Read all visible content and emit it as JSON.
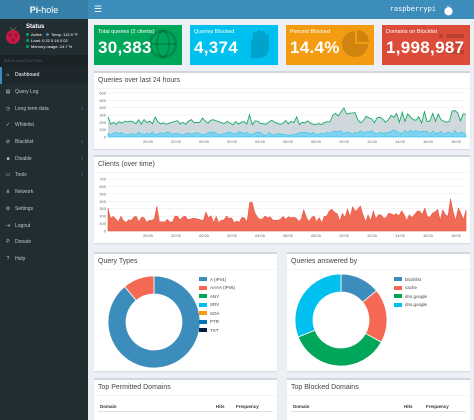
{
  "logo": {
    "part1": "Pi-",
    "part2": "hole"
  },
  "status": {
    "title": "Status",
    "active": "Active",
    "temp": "Temp: 112.9 °F",
    "load": "Load: 0.22  0.16  0.02",
    "memory": "Memory usage: 24.7 %"
  },
  "nav": {
    "header": "MAIN NAVIGATION",
    "items": [
      {
        "label": "Dashboard",
        "icon": "home-icon"
      },
      {
        "label": "Query Log",
        "icon": "file-icon"
      },
      {
        "label": "Long term data",
        "icon": "clock-icon"
      },
      {
        "label": "Whitelist",
        "icon": "check-icon"
      },
      {
        "label": "Blacklist",
        "icon": "ban-icon"
      },
      {
        "label": "Disable",
        "icon": "stop-icon"
      },
      {
        "label": "Tools",
        "icon": "folder-icon"
      },
      {
        "label": "Network",
        "icon": "network-icon"
      },
      {
        "label": "Settings",
        "icon": "gear-icon"
      },
      {
        "label": "Logout",
        "icon": "logout-icon"
      },
      {
        "label": "Donate",
        "icon": "paypal-icon"
      },
      {
        "label": "Help",
        "icon": "help-icon"
      }
    ]
  },
  "header": {
    "hostname": "raspberrypi"
  },
  "stats": [
    {
      "label": "Total queries (2 clients)",
      "value": "30,383",
      "color": "#00a65a",
      "icon": "globe-icon"
    },
    {
      "label": "Queries Blocked",
      "value": "4,374",
      "color": "#00c0ef",
      "icon": "hand-icon"
    },
    {
      "label": "Percent Blocked",
      "value": "14.4%",
      "color": "#f39c12",
      "icon": "pie-icon"
    },
    {
      "label": "Domains on Blocklist",
      "value": "1,998,987",
      "color": "#dd4b39",
      "icon": "list-icon"
    }
  ],
  "queries_chart": {
    "title": "Queries over last 24 hours",
    "yticks": [
      "0",
      "100",
      "200",
      "300",
      "400",
      "500",
      "600"
    ],
    "xticks": [
      "20:00",
      "22:00",
      "00:00",
      "02:00",
      "04:00",
      "06:00",
      "08:00",
      "10:00",
      "12:00",
      "14:00",
      "16:00",
      "18:00"
    ]
  },
  "clients_chart": {
    "title": "Clients (over time)",
    "yticks": [
      "0",
      "100",
      "200",
      "300",
      "400",
      "500",
      "600",
      "700"
    ],
    "xticks": [
      "20:00",
      "22:00",
      "00:00",
      "02:00",
      "04:00",
      "06:00",
      "08:00",
      "10:00",
      "12:00",
      "14:00",
      "16:00",
      "18:00"
    ]
  },
  "query_types": {
    "title": "Query Types",
    "legend": [
      {
        "label": "A (IPv4)",
        "color": "#3c8dbc"
      },
      {
        "label": "AAAA (IPv6)",
        "color": "#f56954"
      },
      {
        "label": "ANY",
        "color": "#00a65a"
      },
      {
        "label": "SRV",
        "color": "#00c0ef"
      },
      {
        "label": "SOA",
        "color": "#f39c12"
      },
      {
        "label": "PTR",
        "color": "#0073b7"
      },
      {
        "label": "TXT",
        "color": "#001f3f"
      }
    ],
    "values": [
      89,
      11,
      0,
      0,
      0,
      0,
      0
    ]
  },
  "queries_answered": {
    "title": "Queries answered by",
    "legend": [
      {
        "label": "blocklist",
        "color": "#3c8dbc"
      },
      {
        "label": "cache",
        "color": "#f56954"
      },
      {
        "label": "dns.google",
        "color": "#00a65a"
      },
      {
        "label": "dns.google",
        "color": "#00c0ef"
      }
    ],
    "values": [
      14,
      19,
      36,
      31
    ]
  },
  "top_permitted": {
    "title": "Top Permitted Domains",
    "cols": [
      "Domain",
      "Hits",
      "Frequency"
    ]
  },
  "top_blocked": {
    "title": "Top Blocked Domains",
    "cols": [
      "Domain",
      "Hits",
      "Frequency"
    ]
  }
}
